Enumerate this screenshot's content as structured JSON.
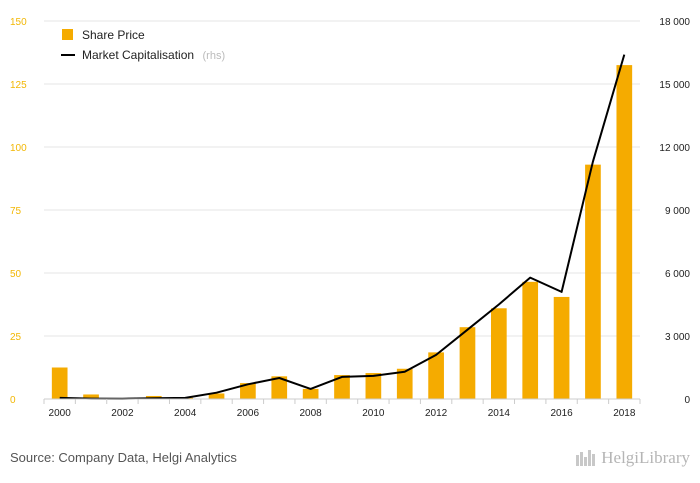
{
  "chart_data": {
    "type": "bar",
    "x": [
      2000,
      2001,
      2002,
      2003,
      2004,
      2005,
      2006,
      2007,
      2008,
      2009,
      2010,
      2011,
      2012,
      2013,
      2014,
      2015,
      2016,
      2017,
      2018
    ],
    "x_tick_labels": [
      "2000",
      "2002",
      "2004",
      "2006",
      "2008",
      "2010",
      "2012",
      "2014",
      "2016",
      "2018"
    ],
    "series": [
      {
        "name": "Share Price",
        "type": "bar",
        "axis": "left",
        "color": "#f5ab00",
        "values": [
          12.5,
          1.8,
          0.3,
          1.2,
          0.5,
          2.2,
          6.3,
          9,
          4,
          9.5,
          10.3,
          12,
          18.5,
          28.5,
          36,
          46.5,
          40.5,
          93,
          132.5
        ]
      },
      {
        "name": "Market Capitalisation",
        "name_suffix": "(rhs)",
        "type": "line",
        "axis": "right",
        "color": "#000000",
        "values": [
          50,
          20,
          15,
          40,
          50,
          300,
          700,
          1000,
          480,
          1050,
          1100,
          1300,
          2100,
          3300,
          4500,
          5780,
          5100,
          11300,
          16400
        ]
      }
    ],
    "y_left": {
      "ylim": [
        0,
        150
      ],
      "ticks": [
        "0",
        "25",
        "50",
        "75",
        "100",
        "125",
        "150"
      ]
    },
    "y_right": {
      "ylim": [
        0,
        18000
      ],
      "ticks": [
        "0",
        "3 000",
        "6 000",
        "9 000",
        "12 000",
        "15 000",
        "18 000"
      ]
    },
    "grid": true,
    "legend": "top-left"
  },
  "footer": {
    "source": "Source: Company Data, Helgi Analytics",
    "logo_text": "HelgiLibrary"
  }
}
